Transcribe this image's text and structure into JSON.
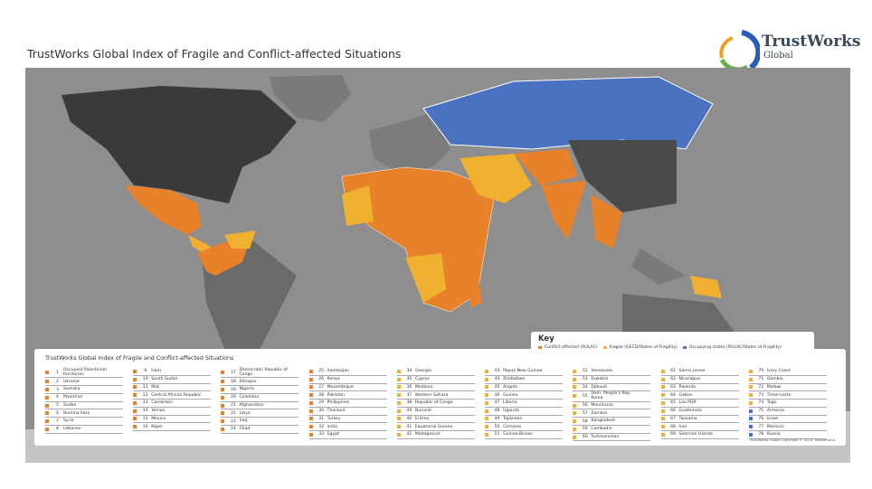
{
  "header": {
    "title": "TrustWorks Global Index of Fragile and Conflict-affected Situations",
    "logo": {
      "name": "TrustWorks",
      "sub": "Global"
    }
  },
  "key": {
    "title": "Key",
    "items": [
      {
        "label": "Conflict-affected (RULAC)",
        "color": "#e8822a"
      },
      {
        "label": "Fragile (OECD/States of Fragility)",
        "color": "#f0b030"
      },
      {
        "label": "Occupying states (RULAC/States of Fragility)",
        "color": "#4a72c0"
      }
    ]
  },
  "index": {
    "title": "TrustWorks Global Index of Fragile and Conflict-affected Situations",
    "columns": [
      [
        {
          "number": 1,
          "name": "Occupied Palestinian territories",
          "color": "#e8822a"
        },
        {
          "number": 2,
          "name": "Ukraine",
          "color": "#e8822a"
        },
        {
          "number": 3,
          "name": "Somalia",
          "color": "#e8822a"
        },
        {
          "number": 4,
          "name": "Myanmar",
          "color": "#e8822a"
        },
        {
          "number": 5,
          "name": "Sudan",
          "color": "#e8822a"
        },
        {
          "number": 6,
          "name": "Burkina Faso",
          "color": "#e8822a"
        },
        {
          "number": 7,
          "name": "Syria",
          "color": "#e8822a"
        },
        {
          "number": 8,
          "name": "Lebanon",
          "color": "#e8822a"
        }
      ],
      [
        {
          "number": 9,
          "name": "Haiti",
          "color": "#e8822a"
        },
        {
          "number": 10,
          "name": "South Sudan",
          "color": "#e8822a"
        },
        {
          "number": 11,
          "name": "Mali",
          "color": "#e8822a"
        },
        {
          "number": 12,
          "name": "Central African Republic",
          "color": "#e8822a"
        },
        {
          "number": 13,
          "name": "Cameroon",
          "color": "#e8822a"
        },
        {
          "number": 14,
          "name": "Yemen",
          "color": "#e8822a"
        },
        {
          "number": 15,
          "name": "Mexico",
          "color": "#e8822a"
        },
        {
          "number": 16,
          "name": "Niger",
          "color": "#e8822a"
        }
      ],
      [
        {
          "number": 17,
          "name": "Democratic Republic of Congo",
          "color": "#e8822a"
        },
        {
          "number": 18,
          "name": "Ethiopia",
          "color": "#e8822a"
        },
        {
          "number": 19,
          "name": "Nigeria",
          "color": "#e8822a"
        },
        {
          "number": 20,
          "name": "Colombia",
          "color": "#e8822a"
        },
        {
          "number": 21,
          "name": "Afghanistan",
          "color": "#e8822a"
        },
        {
          "number": 22,
          "name": "Libya",
          "color": "#e8822a"
        },
        {
          "number": 23,
          "name": "Iraq",
          "color": "#e8822a"
        },
        {
          "number": 24,
          "name": "Chad",
          "color": "#e8822a"
        }
      ],
      [
        {
          "number": 25,
          "name": "Azerbaijan",
          "color": "#e8822a"
        },
        {
          "number": 26,
          "name": "Kenya",
          "color": "#e8822a"
        },
        {
          "number": 27,
          "name": "Mozambique",
          "color": "#e8822a"
        },
        {
          "number": 28,
          "name": "Pakistan",
          "color": "#e8822a"
        },
        {
          "number": 29,
          "name": "Philippines",
          "color": "#e8822a"
        },
        {
          "number": 30,
          "name": "Thailand",
          "color": "#e8822a"
        },
        {
          "number": 31,
          "name": "Turkey",
          "color": "#e8822a"
        },
        {
          "number": 32,
          "name": "India",
          "color": "#e8822a"
        },
        {
          "number": 33,
          "name": "Egypt",
          "color": "#e8822a"
        }
      ],
      [
        {
          "number": 34,
          "name": "Georgia",
          "color": "#f0b030"
        },
        {
          "number": 35,
          "name": "Cyprus",
          "color": "#f0b030"
        },
        {
          "number": 36,
          "name": "Moldova",
          "color": "#f0b030"
        },
        {
          "number": 37,
          "name": "Western Sahara",
          "color": "#f0b030"
        },
        {
          "number": 38,
          "name": "Republic of Congo",
          "color": "#f0b030"
        },
        {
          "number": 39,
          "name": "Burundi",
          "color": "#f0b030"
        },
        {
          "number": 40,
          "name": "Eritrea",
          "color": "#f0b030"
        },
        {
          "number": 41,
          "name": "Equatorial Guinea",
          "color": "#f0b030"
        },
        {
          "number": 42,
          "name": "Madagascar",
          "color": "#f0b030"
        }
      ],
      [
        {
          "number": 43,
          "name": "Papua New Guinea",
          "color": "#f0b030"
        },
        {
          "number": 44,
          "name": "Zimbabwe",
          "color": "#f0b030"
        },
        {
          "number": 45,
          "name": "Angola",
          "color": "#f0b030"
        },
        {
          "number": 46,
          "name": "Guinea",
          "color": "#f0b030"
        },
        {
          "number": 47,
          "name": "Liberia",
          "color": "#f0b030"
        },
        {
          "number": 48,
          "name": "Uganda",
          "color": "#f0b030"
        },
        {
          "number": 49,
          "name": "Tajikistan",
          "color": "#f0b030"
        },
        {
          "number": 50,
          "name": "Comoros",
          "color": "#f0b030"
        },
        {
          "number": 51,
          "name": "Guinea-Bissau",
          "color": "#f0b030"
        }
      ],
      [
        {
          "number": 52,
          "name": "Venezuela",
          "color": "#f0b030"
        },
        {
          "number": 53,
          "name": "Eswatini",
          "color": "#f0b030"
        },
        {
          "number": 54,
          "name": "Djibouti",
          "color": "#f0b030"
        },
        {
          "number": 55,
          "name": "Dem. People's Rep. Korea",
          "color": "#f0b030"
        },
        {
          "number": 56,
          "name": "Mauritania",
          "color": "#f0b030"
        },
        {
          "number": 57,
          "name": "Zambia",
          "color": "#f0b030"
        },
        {
          "number": 58,
          "name": "Bangladesh",
          "color": "#f0b030"
        },
        {
          "number": 59,
          "name": "Cambodia",
          "color": "#f0b030"
        },
        {
          "number": 60,
          "name": "Turkmenistan",
          "color": "#f0b030"
        }
      ],
      [
        {
          "number": 61,
          "name": "Sierra Leone",
          "color": "#f0b030"
        },
        {
          "number": 62,
          "name": "Nicaragua",
          "color": "#f0b030"
        },
        {
          "number": 63,
          "name": "Rwanda",
          "color": "#f0b030"
        },
        {
          "number": 64,
          "name": "Gabon",
          "color": "#f0b030"
        },
        {
          "number": 65,
          "name": "Lao PDR",
          "color": "#f0b030"
        },
        {
          "number": 66,
          "name": "Guatemala",
          "color": "#f0b030"
        },
        {
          "number": 67,
          "name": "Tanzania",
          "color": "#f0b030"
        },
        {
          "number": 68,
          "name": "Iran",
          "color": "#f0b030"
        },
        {
          "number": 69,
          "name": "Solomon Islands",
          "color": "#f0b030"
        }
      ],
      [
        {
          "number": 70,
          "name": "Ivory Coast",
          "color": "#f0b030"
        },
        {
          "number": 71,
          "name": "Gambia",
          "color": "#f0b030"
        },
        {
          "number": 72,
          "name": "Malawi",
          "color": "#f0b030"
        },
        {
          "number": 73,
          "name": "Timor-Leste",
          "color": "#f0b030"
        },
        {
          "number": 74,
          "name": "Togo",
          "color": "#f0b030"
        },
        {
          "number": 75,
          "name": "Armenia",
          "color": "#4a72c0"
        },
        {
          "number": 76,
          "name": "Israel",
          "color": "#4a72c0"
        },
        {
          "number": 77,
          "name": "Morocco",
          "color": "#4a72c0"
        },
        {
          "number": 78,
          "name": "Russia",
          "color": "#4a72c0"
        }
      ]
    ]
  },
  "footer": {
    "copyright": "TrustWorks Global Copyright © 2024, Switzerland"
  }
}
